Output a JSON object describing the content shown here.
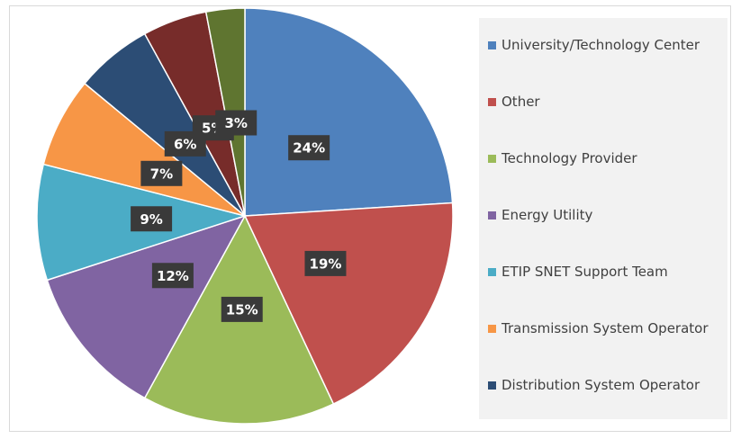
{
  "chart_data": {
    "type": "pie",
    "categories": [
      "University/Technology Center",
      "Other",
      "Technology Provider",
      "Energy Utility",
      "ETIP SNET Support Team",
      "Transmission System Operator",
      "Distribution System Operator",
      null,
      null
    ],
    "values": [
      24,
      19,
      15,
      12,
      9,
      7,
      6,
      5,
      3
    ],
    "value_labels": [
      "24%",
      "19%",
      "15%",
      "12%",
      "9%",
      "7%",
      "6%",
      "5%",
      "3%"
    ],
    "colors": [
      "#4f81bd",
      "#c0504d",
      "#9bbb59",
      "#8064a2",
      "#4bacc6",
      "#f79646",
      "#2c4d75",
      "#772c2a",
      "#5f7530"
    ],
    "legend": "right"
  }
}
